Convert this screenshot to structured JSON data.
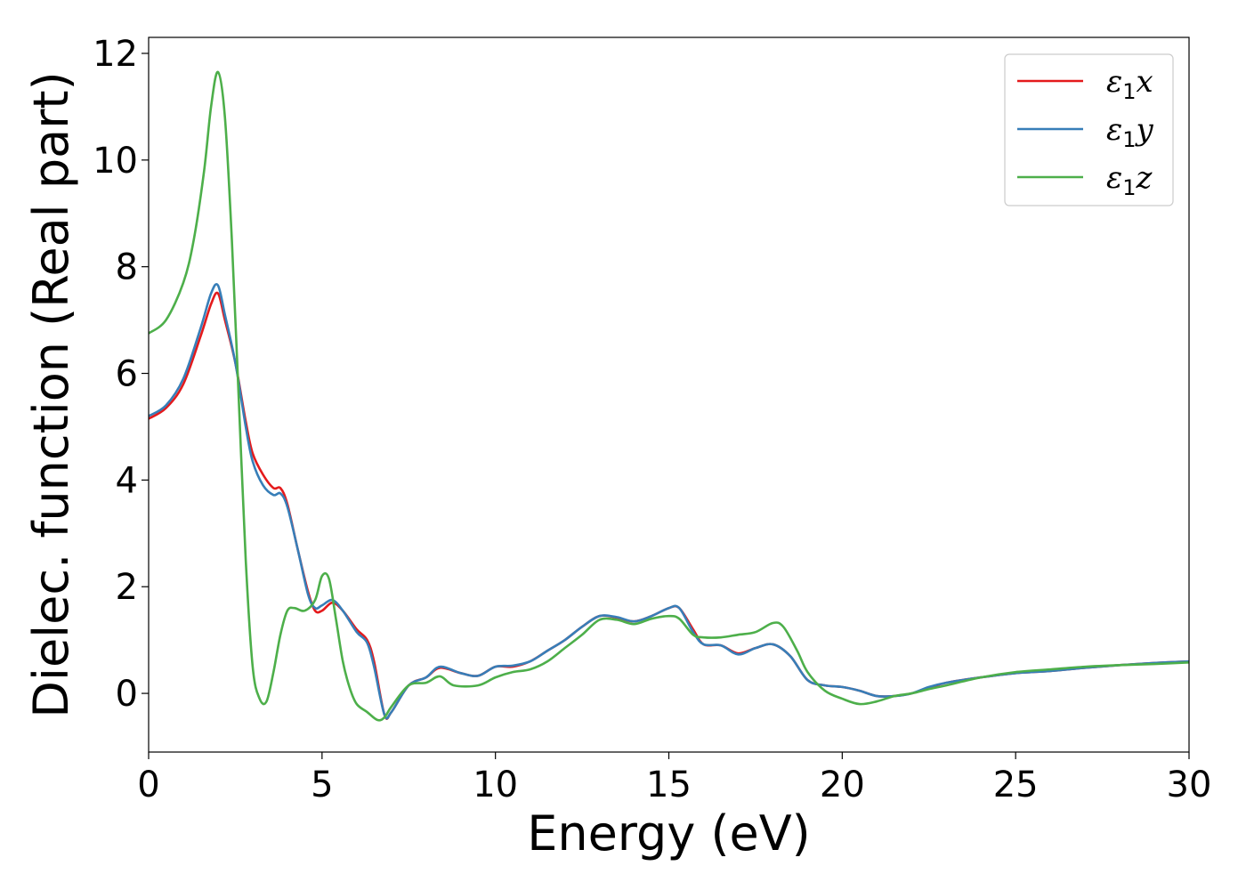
{
  "chart_data": {
    "type": "line",
    "title": "",
    "xlabel": "Energy (eV)",
    "ylabel": "Dielec. function (Real part)",
    "xlim": [
      0,
      30
    ],
    "ylim": [
      -1.1,
      12.3
    ],
    "xticks": [
      0,
      5,
      10,
      15,
      20,
      25,
      30
    ],
    "yticks": [
      0,
      2,
      4,
      6,
      8,
      10,
      12
    ],
    "grid": false,
    "legend_position": "top-right",
    "series": [
      {
        "name": "ε1x",
        "legend_main": "ε",
        "legend_sub": "1",
        "legend_var": "x",
        "color": "#e41a1c",
        "x": [
          0,
          0.5,
          1.0,
          1.5,
          1.8,
          2.0,
          2.2,
          2.5,
          2.8,
          3.0,
          3.3,
          3.6,
          3.8,
          4.0,
          4.3,
          4.6,
          4.8,
          5.0,
          5.3,
          5.6,
          6.0,
          6.3,
          6.5,
          6.8,
          7.0,
          7.5,
          8.0,
          8.4,
          9.0,
          9.5,
          10.0,
          10.5,
          11.0,
          11.5,
          12.0,
          12.5,
          13.0,
          13.5,
          14.0,
          14.5,
          15.0,
          15.3,
          15.7,
          16.0,
          16.5,
          17.0,
          17.5,
          18.0,
          18.5,
          19.0,
          19.5,
          20.0,
          20.5,
          21.0,
          21.5,
          22.0,
          22.5,
          23.0,
          24.0,
          25.0,
          26.0,
          27.0,
          28.0,
          29.0,
          30.0
        ],
        "y": [
          5.15,
          5.35,
          5.8,
          6.7,
          7.3,
          7.5,
          7.0,
          6.2,
          5.1,
          4.5,
          4.1,
          3.85,
          3.85,
          3.55,
          2.7,
          1.9,
          1.55,
          1.55,
          1.7,
          1.55,
          1.2,
          1.0,
          0.6,
          -0.4,
          -0.35,
          0.15,
          0.3,
          0.48,
          0.38,
          0.33,
          0.5,
          0.5,
          0.6,
          0.8,
          1.0,
          1.25,
          1.45,
          1.42,
          1.35,
          1.45,
          1.6,
          1.6,
          1.2,
          0.92,
          0.9,
          0.75,
          0.85,
          0.92,
          0.7,
          0.25,
          0.15,
          0.12,
          0.05,
          -0.05,
          -0.05,
          0.0,
          0.1,
          0.2,
          0.3,
          0.38,
          0.42,
          0.48,
          0.53,
          0.57,
          0.6
        ]
      },
      {
        "name": "ε1y",
        "legend_main": "ε",
        "legend_sub": "1",
        "legend_var": "y",
        "color": "#377eb8",
        "x": [
          0,
          0.5,
          1.0,
          1.5,
          1.8,
          2.0,
          2.2,
          2.5,
          2.8,
          3.0,
          3.3,
          3.6,
          3.8,
          4.0,
          4.3,
          4.6,
          4.8,
          5.0,
          5.3,
          5.6,
          6.0,
          6.3,
          6.5,
          6.8,
          7.0,
          7.5,
          8.0,
          8.4,
          9.0,
          9.5,
          10.0,
          10.5,
          11.0,
          11.5,
          12.0,
          12.5,
          13.0,
          13.5,
          14.0,
          14.5,
          15.0,
          15.3,
          15.7,
          16.0,
          16.5,
          17.0,
          17.5,
          18.0,
          18.5,
          19.0,
          19.5,
          20.0,
          20.5,
          21.0,
          21.5,
          22.0,
          22.5,
          23.0,
          24.0,
          25.0,
          26.0,
          27.0,
          28.0,
          29.0,
          30.0
        ],
        "y": [
          5.2,
          5.4,
          5.9,
          6.85,
          7.5,
          7.65,
          7.1,
          6.2,
          5.0,
          4.35,
          3.9,
          3.72,
          3.75,
          3.5,
          2.7,
          1.85,
          1.6,
          1.65,
          1.75,
          1.55,
          1.15,
          0.95,
          0.5,
          -0.4,
          -0.35,
          0.15,
          0.3,
          0.5,
          0.38,
          0.33,
          0.5,
          0.52,
          0.6,
          0.8,
          1.0,
          1.25,
          1.45,
          1.43,
          1.35,
          1.45,
          1.6,
          1.6,
          1.15,
          0.92,
          0.9,
          0.73,
          0.85,
          0.92,
          0.7,
          0.25,
          0.15,
          0.12,
          0.05,
          -0.05,
          -0.05,
          0.0,
          0.12,
          0.2,
          0.3,
          0.38,
          0.42,
          0.48,
          0.53,
          0.57,
          0.6
        ]
      },
      {
        "name": "ε1z",
        "legend_main": "ε",
        "legend_sub": "1",
        "legend_var": "z",
        "color": "#4daf4a",
        "x": [
          0,
          0.5,
          1.0,
          1.3,
          1.6,
          1.8,
          2.0,
          2.2,
          2.4,
          2.6,
          2.8,
          3.0,
          3.2,
          3.4,
          3.6,
          3.8,
          4.0,
          4.2,
          4.5,
          4.8,
          5.0,
          5.2,
          5.4,
          5.6,
          5.8,
          6.0,
          6.3,
          6.6,
          6.8,
          7.0,
          7.5,
          8.0,
          8.4,
          8.8,
          9.5,
          10.0,
          10.5,
          11.0,
          11.5,
          12.0,
          12.5,
          13.0,
          13.5,
          14.0,
          14.5,
          15.0,
          15.3,
          15.7,
          16.0,
          16.5,
          17.0,
          17.5,
          18.0,
          18.3,
          18.7,
          19.0,
          19.5,
          20.0,
          20.5,
          21.0,
          21.5,
          22.0,
          22.5,
          23.0,
          24.0,
          25.0,
          26.0,
          27.0,
          28.0,
          29.0,
          30.0
        ],
        "y": [
          6.75,
          7.0,
          7.7,
          8.5,
          9.8,
          11.0,
          11.65,
          10.8,
          8.5,
          5.5,
          2.5,
          0.5,
          -0.1,
          -0.15,
          0.4,
          1.1,
          1.55,
          1.6,
          1.55,
          1.75,
          2.2,
          2.15,
          1.4,
          0.6,
          0.1,
          -0.2,
          -0.35,
          -0.5,
          -0.45,
          -0.25,
          0.15,
          0.2,
          0.32,
          0.15,
          0.15,
          0.3,
          0.4,
          0.45,
          0.6,
          0.85,
          1.1,
          1.38,
          1.38,
          1.3,
          1.4,
          1.45,
          1.4,
          1.1,
          1.05,
          1.05,
          1.1,
          1.15,
          1.32,
          1.25,
          0.8,
          0.4,
          0.05,
          -0.1,
          -0.2,
          -0.15,
          -0.05,
          0.0,
          0.08,
          0.15,
          0.3,
          0.4,
          0.45,
          0.5,
          0.53,
          0.55,
          0.58
        ]
      }
    ]
  }
}
